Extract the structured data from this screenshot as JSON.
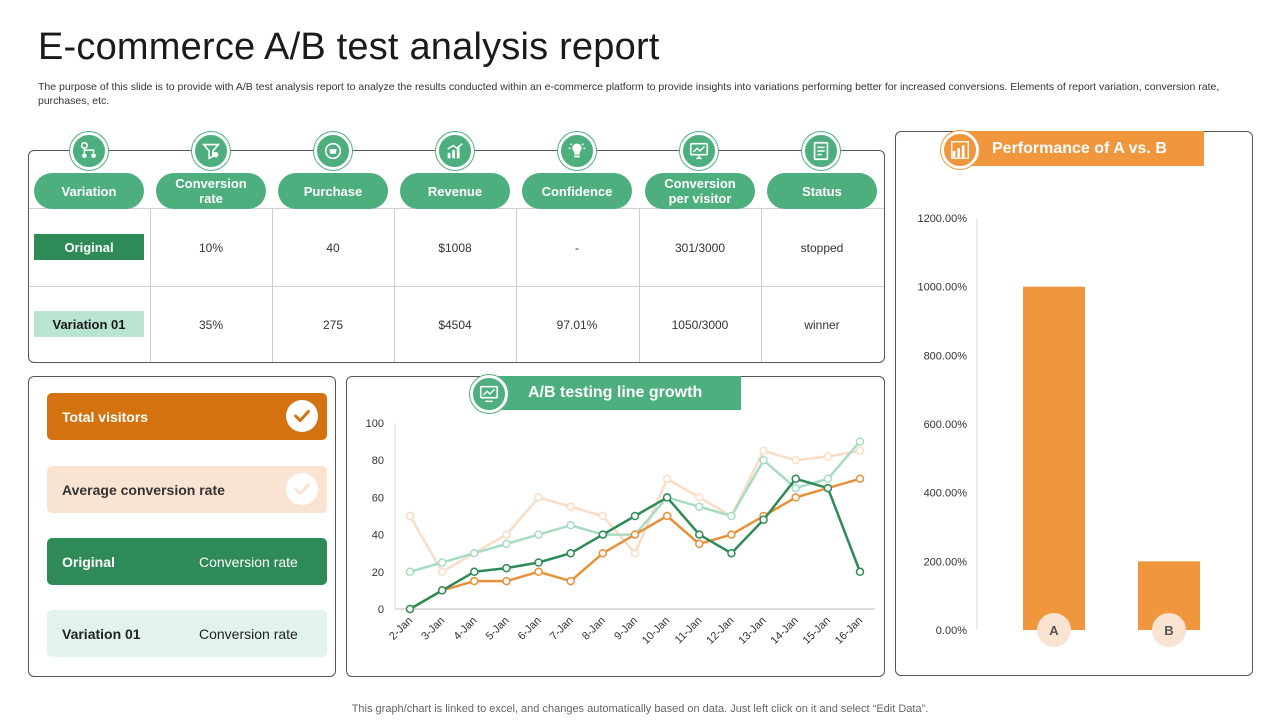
{
  "title": "E-commerce A/B test analysis report",
  "subtitle": "The purpose of this slide is to provide with A/B test analysis report to analyze the results conducted within an e-commerce platform to provide insights into variations performing better for increased conversions. Elements of report variation, conversion rate, purchases, etc.",
  "table": {
    "headers": [
      "Variation",
      "Conversion rate",
      "Purchase",
      "Revenue",
      "Confidence",
      "Conversion per visitor",
      "Status"
    ],
    "rows": [
      {
        "label": "Original",
        "cells": [
          "10%",
          "40",
          "$1008",
          "-",
          "301/3000",
          "stopped"
        ]
      },
      {
        "label": "Variation 01",
        "cells": [
          "35%",
          "275",
          "$4504",
          "97.01%",
          "1050/3000",
          "winner"
        ]
      }
    ]
  },
  "legend": {
    "total_visitors": "Total visitors",
    "avg_conversion": "Average conversion rate",
    "original": "Original",
    "original_sub": "Conversion rate",
    "variation": "Variation 01",
    "variation_sub": "Conversion rate"
  },
  "line_banner": "A/B testing line growth",
  "bar_banner": "Performance of A vs. B",
  "footer": "This graph/chart is linked to excel,  and changes automatically based on data. Just left click on it and select “Edit Data”.",
  "colors": {
    "green": "#4caf7d",
    "dark_green": "#2e8b57",
    "light_green": "#a8dcc2",
    "orange": "#e8913a",
    "dark_orange": "#d4720f",
    "peach": "#fbe3d2",
    "pale_green": "#e1f3ea"
  },
  "chart_data": [
    {
      "type": "line",
      "categories": [
        "2-Jan",
        "3-Jan",
        "4-Jan",
        "5-Jan",
        "6-Jan",
        "7-Jan",
        "8-Jan",
        "9-Jan",
        "10-Jan",
        "11-Jan",
        "12-Jan",
        "13-Jan",
        "14-Jan",
        "15-Jan",
        "16-Jan"
      ],
      "ylim": [
        0,
        100
      ],
      "yticks": [
        0,
        20,
        40,
        60,
        80,
        100
      ],
      "series": [
        {
          "color": "#2e8b57",
          "values": [
            0,
            10,
            20,
            22,
            25,
            30,
            40,
            50,
            60,
            40,
            30,
            48,
            70,
            65,
            20
          ]
        },
        {
          "color": "#e8913a",
          "values": [
            0,
            10,
            15,
            15,
            20,
            15,
            30,
            40,
            50,
            35,
            40,
            50,
            60,
            65,
            70
          ]
        },
        {
          "color": "#a8dcc2",
          "values": [
            20,
            25,
            30,
            35,
            40,
            45,
            40,
            40,
            60,
            55,
            50,
            80,
            65,
            70,
            90
          ]
        },
        {
          "color": "#fbdcc4",
          "values": [
            50,
            20,
            30,
            40,
            60,
            55,
            50,
            30,
            70,
            60,
            50,
            85,
            80,
            82,
            85
          ]
        }
      ]
    },
    {
      "type": "bar",
      "categories": [
        "A",
        "B"
      ],
      "values": [
        1000,
        200
      ],
      "ylim": [
        0,
        1200
      ],
      "yticks": [
        "0.00%",
        "200.00%",
        "400.00%",
        "600.00%",
        "800.00%",
        "1000.00%",
        "1200.00%"
      ],
      "color": "#f0963c"
    }
  ]
}
